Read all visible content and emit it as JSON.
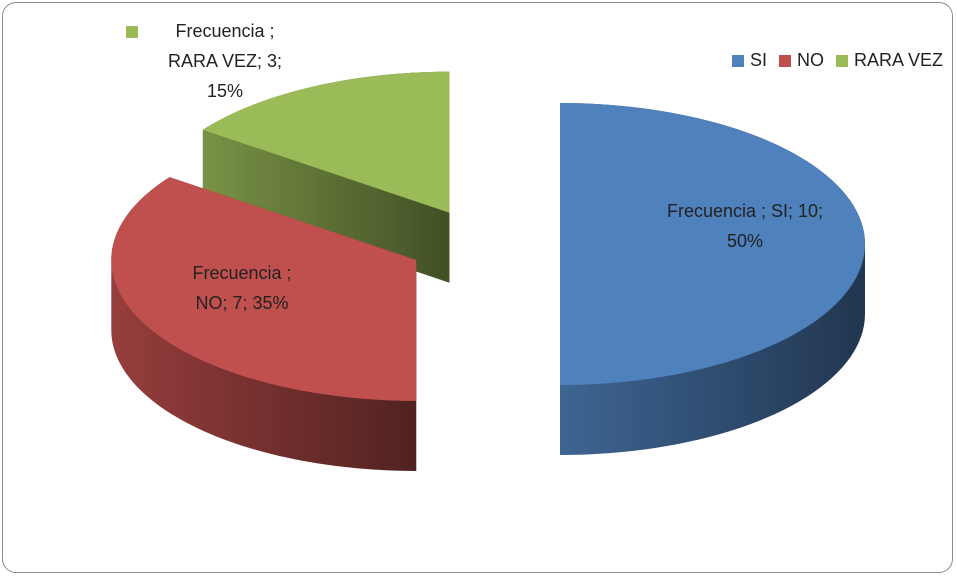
{
  "chart_data": {
    "type": "pie3d",
    "categories": [
      "SI",
      "NO",
      "RARA VEZ"
    ],
    "values": [
      10,
      7,
      3
    ],
    "value_labels": [
      "Frecuencia ; SI; 10; 50%",
      "Frecuencia ; NO; 7; 35%",
      "Frecuencia ; RARA VEZ; 3; 15%"
    ],
    "colors": [
      "#4f81bd",
      "#c0504d",
      "#9bbb59"
    ],
    "legend": "top-right",
    "exploded": true
  }
}
